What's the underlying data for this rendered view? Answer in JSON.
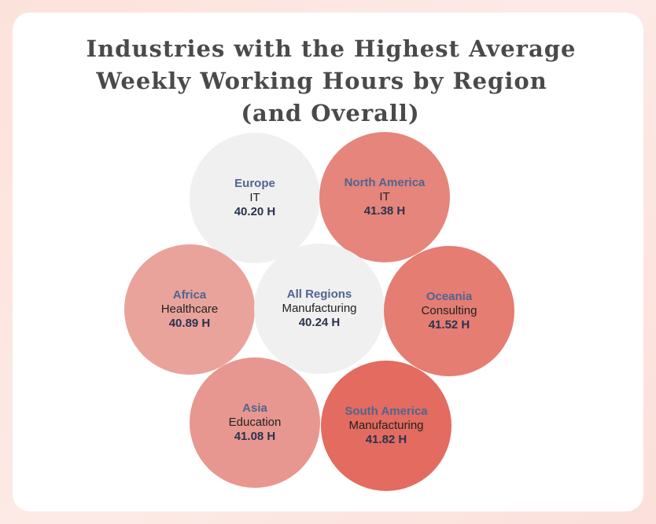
{
  "title_lines": [
    "Industries with the Highest Average",
    "Weekly Working Hours by Region",
    "(and Overall)"
  ],
  "colors": {
    "neutral": "#f0f0f0",
    "scale_low": "#ebbab4",
    "scale_high": "#e36b5f"
  },
  "chart_data": {
    "type": "bubble",
    "title": "Industries with the Highest Average Weekly Working Hours by Region (and Overall)",
    "unit": "H",
    "value_range": [
      40.5,
      41.82
    ],
    "bubbles": [
      {
        "id": "europe",
        "region": "Europe",
        "industry": "IT",
        "value": 40.2,
        "label": "40.20 H"
      },
      {
        "id": "north-america",
        "region": "North America",
        "industry": "IT",
        "value": 41.38,
        "label": "41.38 H"
      },
      {
        "id": "africa",
        "region": "Africa",
        "industry": "Healthcare",
        "value": 40.89,
        "label": "40.89 H"
      },
      {
        "id": "all-regions",
        "region": "All Regions",
        "industry": "Manufacturing",
        "value": 40.24,
        "label": "40.24 H"
      },
      {
        "id": "oceania",
        "region": "Oceania",
        "industry": "Consulting",
        "value": 41.52,
        "label": "41.52 H"
      },
      {
        "id": "asia",
        "region": "Asia",
        "industry": "Education",
        "value": 41.08,
        "label": "41.08 H"
      },
      {
        "id": "south-america",
        "region": "South America",
        "industry": "Manufacturing",
        "value": 41.82,
        "label": "41.82 H"
      }
    ]
  }
}
